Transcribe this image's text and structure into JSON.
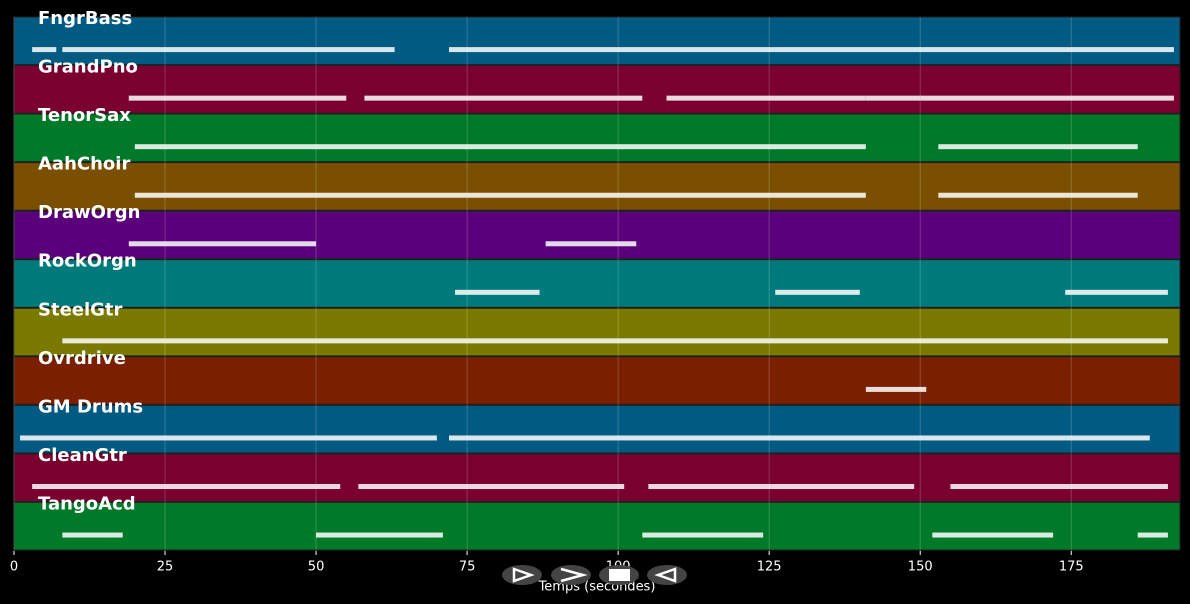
{
  "chart_data": {
    "type": "pianoroll",
    "xlabel": "Temps (secondes)",
    "xlim": [
      0,
      193
    ],
    "xticks": [
      0,
      25,
      50,
      75,
      100,
      125,
      150,
      175
    ],
    "grid": true,
    "series": [
      {
        "name": "FngrBass",
        "color": "#005a82",
        "notes": [
          [
            3,
            7
          ],
          [
            8,
            63
          ],
          [
            72,
            192
          ]
        ]
      },
      {
        "name": "GrandPno",
        "color": "#7a0030",
        "notes": [
          [
            19,
            50
          ],
          [
            50,
            55
          ],
          [
            58,
            104
          ],
          [
            108,
            141
          ],
          [
            141,
            150
          ],
          [
            150,
            192
          ]
        ]
      },
      {
        "name": "TenorSax",
        "color": "#007a28",
        "notes": [
          [
            20,
            141
          ],
          [
            153,
            186
          ]
        ]
      },
      {
        "name": "AahChoir",
        "color": "#7a5000",
        "notes": [
          [
            20,
            141
          ],
          [
            153,
            186
          ]
        ]
      },
      {
        "name": "DrawOrgn",
        "color": "#5a007a",
        "notes": [
          [
            19,
            50
          ],
          [
            88,
            103
          ]
        ]
      },
      {
        "name": "RockOrgn",
        "color": "#007a7a",
        "notes": [
          [
            73,
            87
          ],
          [
            126,
            140
          ],
          [
            174,
            191
          ]
        ]
      },
      {
        "name": "SteelGtr",
        "color": "#7a7a00",
        "notes": [
          [
            8,
            191
          ]
        ]
      },
      {
        "name": "Ovrdrive",
        "color": "#7a2000",
        "notes": [
          [
            141,
            151
          ]
        ]
      },
      {
        "name": "GM Drums",
        "color": "#005a82",
        "notes": [
          [
            1,
            70
          ],
          [
            72,
            188
          ]
        ]
      },
      {
        "name": "CleanGtr",
        "color": "#7a0030",
        "notes": [
          [
            3,
            54
          ],
          [
            57,
            101
          ],
          [
            105,
            149
          ],
          [
            155,
            191
          ]
        ]
      },
      {
        "name": "TangoAcd",
        "color": "#007a28",
        "notes": [
          [
            8,
            18
          ],
          [
            50,
            71
          ],
          [
            104,
            124
          ],
          [
            152,
            172
          ],
          [
            186,
            191
          ]
        ]
      }
    ]
  }
}
